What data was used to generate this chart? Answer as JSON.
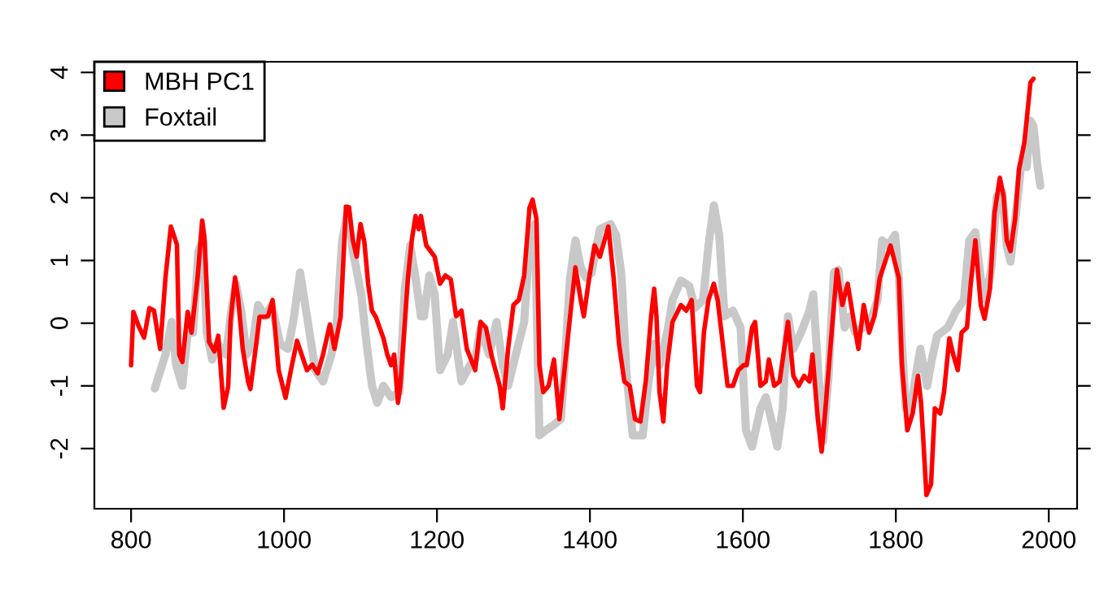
{
  "chart_data": {
    "type": "line",
    "xlim": [
      752,
      2037
    ],
    "ylim": [
      -2.96,
      4.17
    ],
    "xticks": [
      800,
      1000,
      1200,
      1400,
      1600,
      1800,
      2000
    ],
    "yticks": [
      -2,
      -1,
      0,
      1,
      2,
      3,
      4
    ],
    "grid": false,
    "legend": "top left",
    "line_style": "solid",
    "marker": "none",
    "series": [
      {
        "name": "Foxtail",
        "color": "#c8c8c8",
        "x": [
          831,
          845,
          853,
          859,
          867,
          874,
          881,
          888,
          894,
          899,
          906,
          913,
          924,
          931,
          937,
          944,
          951,
          959,
          966,
          975,
          984,
          995,
          1005,
          1012,
          1021,
          1030,
          1041,
          1051,
          1062,
          1069,
          1076,
          1083,
          1090,
          1101,
          1108,
          1115,
          1122,
          1130,
          1140,
          1151,
          1158,
          1165,
          1172,
          1179,
          1183,
          1190,
          1197,
          1204,
          1214,
          1221,
          1232,
          1243,
          1250,
          1257,
          1268,
          1278,
          1286,
          1293,
          1303,
          1314,
          1321,
          1328,
          1334,
          1342,
          1353,
          1362,
          1367,
          1374,
          1381,
          1388,
          1395,
          1402,
          1413,
          1427,
          1434,
          1441,
          1448,
          1456,
          1469,
          1476,
          1484,
          1491,
          1501,
          1508,
          1519,
          1530,
          1537,
          1548,
          1555,
          1562,
          1569,
          1576,
          1587,
          1597,
          1604,
          1612,
          1623,
          1630,
          1637,
          1645,
          1652,
          1659,
          1666,
          1676,
          1687,
          1692,
          1698,
          1705,
          1712,
          1719,
          1725,
          1733,
          1740,
          1747,
          1758,
          1769,
          1776,
          1782,
          1790,
          1799,
          1804,
          1808,
          1813,
          1819,
          1826,
          1832,
          1836,
          1841,
          1847,
          1854,
          1868,
          1879,
          1889,
          1896,
          1904,
          1911,
          1918,
          1925,
          1932,
          1939,
          1945,
          1950,
          1957,
          1964,
          1971,
          1976,
          1980,
          1985,
          1989
        ],
        "values": [
          -1.04,
          -0.5,
          0.02,
          -0.67,
          -1.0,
          -0.15,
          -0.15,
          1.15,
          1.32,
          -0.15,
          -0.58,
          -0.33,
          -0.5,
          0.2,
          0.63,
          0.2,
          -0.5,
          -0.33,
          0.29,
          0.11,
          0.29,
          -0.33,
          -0.41,
          0.02,
          0.81,
          0.11,
          -0.75,
          -0.93,
          -0.5,
          0.02,
          1.32,
          1.75,
          1.15,
          0.46,
          -0.33,
          -1.0,
          -1.27,
          -1.0,
          -1.18,
          -1.1,
          0.55,
          1.24,
          0.72,
          0.11,
          0.11,
          0.76,
          0.46,
          -0.75,
          -0.5,
          0.02,
          -0.93,
          -0.67,
          -0.58,
          -0.07,
          -0.5,
          0.02,
          -0.67,
          -1.0,
          -0.5,
          0.02,
          1.32,
          1.58,
          -1.79,
          -1.71,
          -1.62,
          -1.53,
          -0.67,
          0.72,
          1.32,
          0.89,
          0.72,
          0.8,
          1.5,
          1.58,
          1.41,
          0.8,
          -0.84,
          -1.79,
          -1.79,
          -1.0,
          -0.33,
          -0.67,
          -0.15,
          0.37,
          0.68,
          0.59,
          0.24,
          0.37,
          1.24,
          1.88,
          1.41,
          0.11,
          0.2,
          -0.07,
          -1.71,
          -1.97,
          -1.36,
          -1.18,
          -1.53,
          -1.97,
          -1.36,
          0.11,
          -0.41,
          -0.15,
          0.2,
          0.46,
          -0.67,
          -1.88,
          -0.84,
          0.81,
          0.85,
          -0.07,
          0.11,
          -0.15,
          -0.07,
          0.11,
          0.37,
          1.32,
          1.24,
          1.41,
          0.72,
          -0.33,
          -1.36,
          -1.44,
          -0.84,
          -0.41,
          -0.67,
          -1.0,
          -0.58,
          -0.2,
          -0.07,
          0.2,
          0.37,
          1.32,
          1.45,
          0.72,
          0.37,
          0.89,
          2.02,
          2.1,
          1.24,
          0.98,
          1.75,
          2.53,
          2.49,
          3.23,
          3.14,
          2.53,
          2.19
        ]
      },
      {
        "name": "MBH PC1",
        "color": "#ff0000",
        "x": [
          800,
          803,
          810,
          817,
          824,
          830,
          838,
          845,
          852,
          856,
          860,
          863,
          867,
          874,
          879,
          887,
          893,
          896,
          902,
          909,
          914,
          921,
          927,
          930,
          936,
          940,
          946,
          953,
          956,
          964,
          968,
          979,
          985,
          993,
          1002,
          1009,
          1017,
          1023,
          1030,
          1037,
          1044,
          1051,
          1060,
          1066,
          1074,
          1081,
          1085,
          1090,
          1095,
          1100,
          1105,
          1110,
          1115,
          1120,
          1125,
          1130,
          1135,
          1140,
          1144,
          1149,
          1152,
          1157,
          1162,
          1167,
          1172,
          1176,
          1179,
          1186,
          1197,
          1204,
          1211,
          1218,
          1225,
          1232,
          1239,
          1250,
          1257,
          1264,
          1271,
          1282,
          1286,
          1293,
          1300,
          1307,
          1314,
          1321,
          1325,
          1330,
          1334,
          1339,
          1346,
          1353,
          1360,
          1371,
          1381,
          1388,
          1392,
          1399,
          1406,
          1413,
          1424,
          1431,
          1438,
          1445,
          1452,
          1459,
          1466,
          1473,
          1480,
          1484,
          1487,
          1491,
          1496,
          1501,
          1508,
          1519,
          1526,
          1533,
          1540,
          1544,
          1549,
          1555,
          1562,
          1567,
          1572,
          1580,
          1587,
          1594,
          1601,
          1605,
          1612,
          1616,
          1623,
          1630,
          1634,
          1641,
          1648,
          1659,
          1666,
          1673,
          1680,
          1687,
          1691,
          1698,
          1703,
          1708,
          1716,
          1723,
          1730,
          1737,
          1744,
          1751,
          1758,
          1765,
          1772,
          1779,
          1786,
          1793,
          1804,
          1808,
          1815,
          1822,
          1829,
          1833,
          1836,
          1840,
          1846,
          1851,
          1858,
          1863,
          1870,
          1875,
          1881,
          1886,
          1893,
          1898,
          1904,
          1911,
          1916,
          1923,
          1929,
          1936,
          1941,
          1945,
          1950,
          1956,
          1961,
          1968,
          1971,
          1976,
          1980
        ],
        "values": [
          -0.67,
          0.18,
          -0.05,
          -0.23,
          0.24,
          0.2,
          -0.41,
          0.73,
          1.54,
          1.4,
          1.25,
          -0.5,
          -0.62,
          0.18,
          -0.15,
          0.73,
          1.64,
          1.36,
          -0.3,
          -0.45,
          -0.2,
          -1.35,
          -1.01,
          0.03,
          0.73,
          0.4,
          -0.41,
          -0.93,
          -1.05,
          -0.3,
          0.1,
          0.11,
          0.37,
          -0.75,
          -1.19,
          -0.75,
          -0.28,
          -0.5,
          -0.75,
          -0.66,
          -0.8,
          -0.5,
          -0.02,
          -0.41,
          0.1,
          1.86,
          1.85,
          1.32,
          1.06,
          1.58,
          1.3,
          0.63,
          0.2,
          0.1,
          -0.07,
          -0.24,
          -0.5,
          -0.67,
          -0.5,
          -1.27,
          -1.0,
          -0.15,
          0.72,
          1.32,
          1.71,
          1.5,
          1.71,
          1.24,
          1.06,
          0.63,
          0.76,
          0.7,
          0.11,
          0.2,
          -0.41,
          -0.75,
          0.02,
          -0.07,
          -0.5,
          -1.0,
          -1.36,
          -0.41,
          0.29,
          0.37,
          0.76,
          1.84,
          1.97,
          1.67,
          -0.67,
          -1.1,
          -1.0,
          -0.58,
          -1.53,
          -0.24,
          0.89,
          0.37,
          0.11,
          0.72,
          1.24,
          1.06,
          1.54,
          0.72,
          -0.33,
          -0.93,
          -1.0,
          -1.53,
          -1.57,
          -0.93,
          0.11,
          0.55,
          0.11,
          -1.1,
          -1.57,
          -0.67,
          0.02,
          0.29,
          0.2,
          0.37,
          -1.0,
          -1.1,
          -0.15,
          0.37,
          0.63,
          0.37,
          -0.15,
          -1.0,
          -1.0,
          -0.75,
          -0.67,
          -0.67,
          -0.07,
          0.02,
          -1.0,
          -0.93,
          -0.58,
          -1.0,
          -0.93,
          0.02,
          -0.84,
          -1.0,
          -0.84,
          -0.93,
          -0.5,
          -1.53,
          -2.05,
          -1.36,
          -0.15,
          0.85,
          0.29,
          0.63,
          0.11,
          -0.41,
          0.29,
          -0.15,
          0.11,
          0.72,
          0.98,
          1.24,
          0.72,
          -0.67,
          -1.71,
          -1.44,
          -0.84,
          -1.27,
          -1.88,
          -2.74,
          -2.57,
          -1.36,
          -1.44,
          -1.1,
          -0.24,
          -0.5,
          -0.75,
          -0.15,
          -0.07,
          0.63,
          1.32,
          0.29,
          0.07,
          0.55,
          1.75,
          2.32,
          2.02,
          1.32,
          1.15,
          1.67,
          2.45,
          2.88,
          3.23,
          3.84,
          3.9
        ]
      }
    ]
  }
}
